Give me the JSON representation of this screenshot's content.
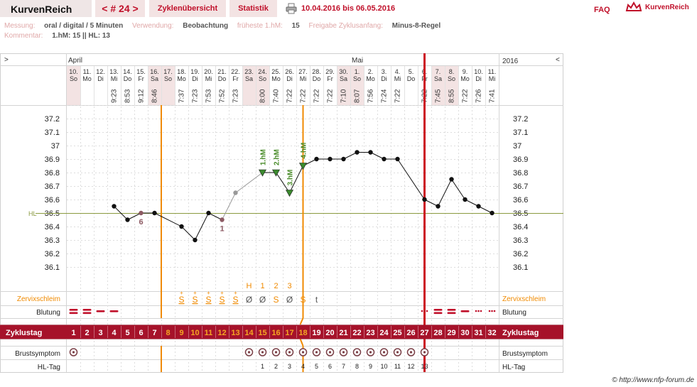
{
  "header": {
    "brand": "KurvenReich",
    "nav_prev": "<",
    "cycle": "# 24",
    "nav_next": ">",
    "tab_overview": "Zyklenübersicht",
    "tab_stats": "Statistik",
    "date_range": "10.04.2016 bis 06.05.2016",
    "faq": "FAQ",
    "logo_text": "KurvenReich"
  },
  "meta": {
    "messung_label": "Messung:",
    "messung_value": "oral / digital / 5 Minuten",
    "verwendung_label": "Verwendung:",
    "verwendung_value": "Beobachtung",
    "frueheste_label": "früheste 1.hM:",
    "frueheste_value": "15",
    "freigabe_label": "Freigabe Zyklusanfang:",
    "freigabe_value": "Minus-8-Regel",
    "kommentar_label": "Kommentar:",
    "kommentar_value": "1.hM: 15 || HL: 13"
  },
  "credit": "© http://www.nfp-forum.de",
  "icons": {
    "printer": "printer-icon",
    "logo": "crown-logo-icon"
  },
  "colors": {
    "accent": "#c0102a",
    "orange": "#f08a00",
    "coverline": "#8a9a40",
    "cycle_bar": "#a6122a",
    "weekend": "#f3e3e3",
    "shaded_point": "#8c5a63"
  },
  "chart_data": {
    "type": "line",
    "ylim": [
      36.0,
      37.3
    ],
    "yticks": [
      "37.2",
      "37.1",
      "37",
      "36.9",
      "36.8",
      "36.7",
      "36.6",
      "36.5",
      "36.4",
      "36.3",
      "36.2",
      "36.1"
    ],
    "coverline": {
      "label": "HL",
      "value": 36.5
    },
    "left_corner": ">",
    "right_corner": "<",
    "year": "2016",
    "months": [
      {
        "label": "April",
        "day_index": 0
      },
      {
        "label": "Mai",
        "day_index": 21
      }
    ],
    "days": [
      {
        "date": "10.",
        "wd": "So",
        "time": "",
        "weekend": true
      },
      {
        "date": "11.",
        "wd": "Mo",
        "time": "",
        "weekend": false
      },
      {
        "date": "12.",
        "wd": "Di",
        "time": "",
        "weekend": false
      },
      {
        "date": "13.",
        "wd": "Mi",
        "time": "9:23",
        "weekend": false
      },
      {
        "date": "14.",
        "wd": "Do",
        "time": "8:53",
        "weekend": false
      },
      {
        "date": "15.",
        "wd": "Fr",
        "time": "9:12",
        "weekend": false
      },
      {
        "date": "16.",
        "wd": "Sa",
        "time": "8:46",
        "weekend": true
      },
      {
        "date": "17.",
        "wd": "So",
        "time": "",
        "weekend": true
      },
      {
        "date": "18.",
        "wd": "Mo",
        "time": "7:37",
        "weekend": false
      },
      {
        "date": "19.",
        "wd": "Di",
        "time": "7:23",
        "weekend": false
      },
      {
        "date": "20.",
        "wd": "Mi",
        "time": "7:53",
        "weekend": false
      },
      {
        "date": "21.",
        "wd": "Do",
        "time": "7:52",
        "weekend": false
      },
      {
        "date": "22.",
        "wd": "Fr",
        "time": "7:23",
        "weekend": false
      },
      {
        "date": "23.",
        "wd": "Sa",
        "time": "",
        "weekend": true
      },
      {
        "date": "24.",
        "wd": "So",
        "time": "8:00",
        "weekend": true
      },
      {
        "date": "25.",
        "wd": "Mo",
        "time": "7:40",
        "weekend": false
      },
      {
        "date": "26.",
        "wd": "Di",
        "time": "7:22",
        "weekend": false
      },
      {
        "date": "27.",
        "wd": "Mi",
        "time": "7:22",
        "weekend": false
      },
      {
        "date": "28.",
        "wd": "Do",
        "time": "7:22",
        "weekend": false
      },
      {
        "date": "29.",
        "wd": "Fr",
        "time": "7:22",
        "weekend": false
      },
      {
        "date": "30.",
        "wd": "Sa",
        "time": "7:10",
        "weekend": true
      },
      {
        "date": "1.",
        "wd": "So",
        "time": "8:07",
        "weekend": true
      },
      {
        "date": "2.",
        "wd": "Mo",
        "time": "7:56",
        "weekend": false
      },
      {
        "date": "3.",
        "wd": "Di",
        "time": "7:24",
        "weekend": false
      },
      {
        "date": "4.",
        "wd": "Mi",
        "time": "7:22",
        "weekend": false
      },
      {
        "date": "5.",
        "wd": "Do",
        "time": "",
        "weekend": false
      },
      {
        "date": "6.",
        "wd": "Fr",
        "time": "7:22",
        "weekend": false
      },
      {
        "date": "7.",
        "wd": "Sa",
        "time": "7:45",
        "weekend": true
      },
      {
        "date": "8.",
        "wd": "So",
        "time": "8:55",
        "weekend": true
      },
      {
        "date": "9.",
        "wd": "Mo",
        "time": "7:22",
        "weekend": false
      },
      {
        "date": "10.",
        "wd": "Di",
        "time": "7:26",
        "weekend": false
      },
      {
        "date": "11.",
        "wd": "Mi",
        "time": "7:41",
        "weekend": false
      }
    ],
    "series": [
      {
        "values": [
          null,
          null,
          null,
          36.55,
          36.45,
          36.5,
          36.5,
          null,
          36.4,
          36.3,
          36.5,
          36.45,
          36.65,
          null,
          36.8,
          36.8,
          36.65,
          36.85,
          36.9,
          36.9,
          36.9,
          36.95,
          36.95,
          36.9,
          36.9,
          null,
          36.6,
          36.55,
          36.75,
          36.6,
          36.55,
          36.5
        ]
      }
    ],
    "excluded_points": [
      {
        "day_index": 5,
        "label": "6"
      },
      {
        "day_index": 11,
        "label": "1"
      }
    ],
    "hm_markers": [
      {
        "day_index": 14,
        "label": "1.hM"
      },
      {
        "day_index": 15,
        "label": "2.hM"
      },
      {
        "day_index": 16,
        "label": "3.hM"
      },
      {
        "day_index": 17,
        "label": "4.hM"
      }
    ],
    "hm_counter": [
      {
        "day_index": 13,
        "label": "H"
      },
      {
        "day_index": 14,
        "label": "1"
      },
      {
        "day_index": 15,
        "label": "2"
      },
      {
        "day_index": 16,
        "label": "3"
      }
    ],
    "vertical_lines": {
      "orange": [
        7,
        17.5
      ],
      "red": 26.5
    },
    "rows": {
      "cervical_label": "Zervixschleim",
      "cervical": [
        "",
        "",
        "",
        "",
        "",
        "",
        "",
        "",
        "S+",
        "S+",
        "S+",
        "S+",
        "S+",
        "Ø",
        "Ø",
        "S",
        "Ø",
        "S",
        "t",
        "",
        "",
        "",
        "",
        "",
        "",
        "",
        "",
        "",
        "",
        "",
        "",
        ""
      ],
      "bleeding_label": "Blutung",
      "bleeding": [
        "heavy",
        "heavy",
        "medium",
        "medium",
        "",
        "",
        "",
        "",
        "",
        "",
        "",
        "",
        "",
        "",
        "",
        "",
        "",
        "",
        "",
        "",
        "",
        "",
        "",
        "",
        "",
        "",
        "spot",
        "heavy",
        "heavy",
        "medium",
        "spot",
        "spot"
      ],
      "cycle_label": "Zyklustag",
      "cycle_days": [
        "1",
        "2",
        "3",
        "4",
        "5",
        "6",
        "7",
        "8",
        "9",
        "10",
        "11",
        "12",
        "13",
        "14",
        "15",
        "16",
        "17",
        "18",
        "19",
        "20",
        "21",
        "22",
        "23",
        "24",
        "25",
        "26",
        "27",
        "28",
        "29",
        "30",
        "31",
        "32"
      ],
      "breast_label": "Brustsymptom",
      "breast": [
        true,
        false,
        false,
        false,
        false,
        false,
        false,
        false,
        false,
        false,
        false,
        false,
        false,
        true,
        true,
        true,
        true,
        true,
        true,
        true,
        true,
        true,
        true,
        true,
        true,
        true,
        true,
        false,
        false,
        false,
        false,
        false
      ],
      "hl_label": "HL-Tag",
      "hl_days": [
        "",
        "",
        "",
        "",
        "",
        "",
        "",
        "",
        "",
        "",
        "",
        "",
        "",
        "",
        "1",
        "2",
        "3",
        "4",
        "5",
        "6",
        "7",
        "8",
        "9",
        "10",
        "11",
        "12",
        "13",
        "",
        "",
        "",
        "",
        ""
      ]
    }
  }
}
